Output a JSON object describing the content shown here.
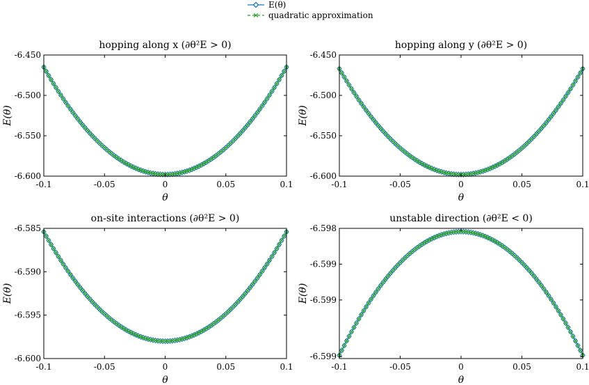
{
  "legend": {
    "entries": [
      {
        "label": "E(θ)",
        "color": "#1f77b4",
        "marker": "diamond"
      },
      {
        "label": "quadratic approximation",
        "color": "#2ca02c",
        "marker": "x",
        "dashed": true
      }
    ]
  },
  "chart_data": [
    {
      "type": "line",
      "title": "hopping along x (∂θ²E > 0)",
      "xlabel": "θ",
      "ylabel": "E(θ)",
      "xlim": [
        -0.1,
        0.1
      ],
      "ylim": [
        -6.6,
        -6.45
      ],
      "xticks": [
        "-0.1",
        "-0.05",
        "0",
        "0.05",
        "0.1"
      ],
      "xtick_values": [
        -0.1,
        -0.05,
        0,
        0.05,
        0.1
      ],
      "yticks": [
        "-6.450",
        "-6.500",
        "-6.550",
        "-6.600"
      ],
      "ytick_values": [
        -6.45,
        -6.5,
        -6.55,
        -6.6
      ],
      "curve": {
        "vertex": -6.598,
        "a": 13.3
      },
      "series": [
        {
          "name": "E(θ)",
          "color": "#1f77b4"
        },
        {
          "name": "quadratic approximation",
          "color": "#2ca02c"
        }
      ]
    },
    {
      "type": "line",
      "title": "hopping along y (∂θ²E > 0)",
      "xlabel": "θ",
      "ylabel": "E(θ)",
      "xlim": [
        -0.1,
        0.1
      ],
      "ylim": [
        -6.6,
        -6.45
      ],
      "xticks": [
        "-0.1",
        "-0.05",
        "0",
        "0.05",
        "0.1"
      ],
      "xtick_values": [
        -0.1,
        -0.05,
        0,
        0.05,
        0.1
      ],
      "yticks": [
        "-6.450",
        "-6.500",
        "-6.550",
        "-6.600"
      ],
      "ytick_values": [
        -6.45,
        -6.5,
        -6.55,
        -6.6
      ],
      "curve": {
        "vertex": -6.598,
        "a": 13.1
      },
      "series": [
        {
          "name": "E(θ)",
          "color": "#1f77b4"
        },
        {
          "name": "quadratic approximation",
          "color": "#2ca02c"
        }
      ]
    },
    {
      "type": "line",
      "title": "on-site interactions (∂θ²E > 0)",
      "xlabel": "θ",
      "ylabel": "E(θ)",
      "xlim": [
        -0.1,
        0.1
      ],
      "ylim": [
        -6.6,
        -6.585
      ],
      "xticks": [
        "-0.1",
        "-0.05",
        "0",
        "0.05",
        "0.1"
      ],
      "xtick_values": [
        -0.1,
        -0.05,
        0,
        0.05,
        0.1
      ],
      "yticks": [
        "-6.585",
        "-6.590",
        "-6.595",
        "-6.600"
      ],
      "ytick_values": [
        -6.585,
        -6.59,
        -6.595,
        -6.6
      ],
      "curve": {
        "vertex": -6.598,
        "a": 1.26
      },
      "series": [
        {
          "name": "E(θ)",
          "color": "#1f77b4"
        },
        {
          "name": "quadratic approximation",
          "color": "#2ca02c"
        }
      ]
    },
    {
      "type": "line",
      "title": "unstable direction (∂θ²E < 0)",
      "xlabel": "θ",
      "ylabel": "E(θ)",
      "xlim": [
        -0.1,
        0.1
      ],
      "ylim": [
        0,
        1
      ],
      "ylim_note_removed": true,
      "xticks": [
        "-0.1",
        "-0.05",
        "0",
        "0.05",
        "0.1"
      ],
      "xtick_values": [
        -0.1,
        -0.05,
        0,
        0.05,
        0.1
      ],
      "yticks": [
        "-6.598",
        "-6.599",
        "-6.599",
        "-6.599"
      ],
      "ytick_values": [
        1,
        0.725,
        0.45,
        0.015
      ],
      "curve": {
        "vertex": 0.975,
        "a": -95.0
      },
      "series": [
        {
          "name": "E(θ)",
          "color": "#1f77b4"
        },
        {
          "name": "quadratic approximation",
          "color": "#2ca02c"
        }
      ]
    }
  ]
}
